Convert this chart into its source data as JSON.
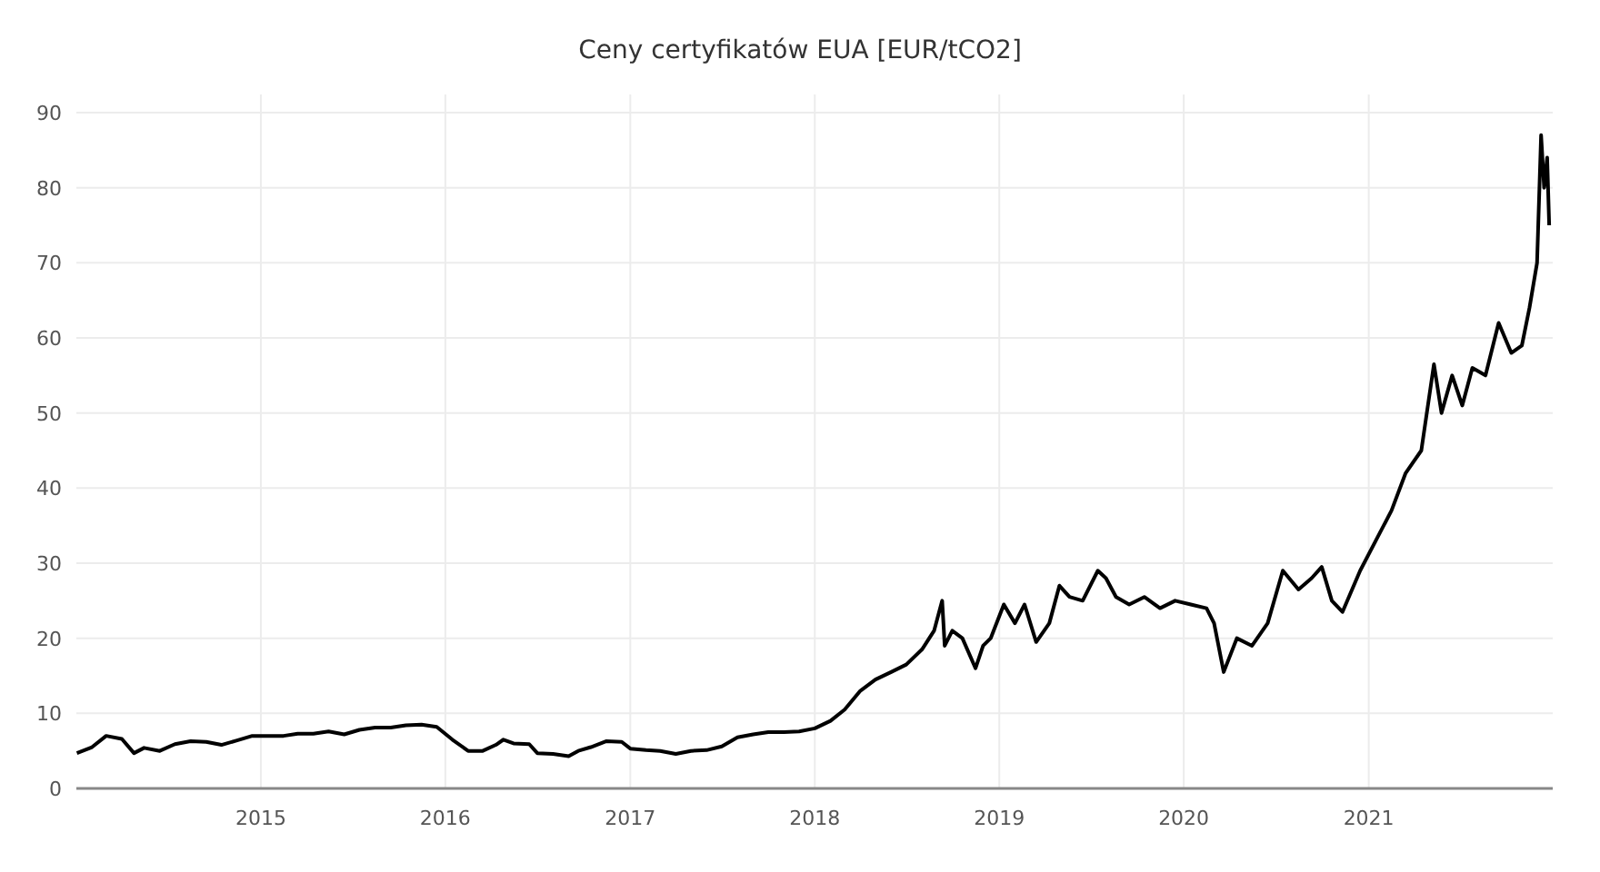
{
  "chart_data": {
    "type": "line",
    "title": "Ceny certyfikatów EUA [EUR/tCO2]",
    "xlim": [
      "2014-01-01",
      "2021-12-31"
    ],
    "xticks": [
      {
        "value": "2015-01-01",
        "label": "2015"
      },
      {
        "value": "2016-01-01",
        "label": "2016"
      },
      {
        "value": "2017-01-01",
        "label": "2017"
      },
      {
        "value": "2018-01-01",
        "label": "2018"
      },
      {
        "value": "2019-01-01",
        "label": "2019"
      },
      {
        "value": "2020-01-01",
        "label": "2020"
      },
      {
        "value": "2021-01-01",
        "label": "2021"
      }
    ],
    "ylim": [
      0,
      90
    ],
    "yticks": [
      0,
      10,
      20,
      30,
      40,
      50,
      60,
      70,
      80,
      90
    ],
    "grid": true,
    "series": [
      {
        "color": "#000000",
        "x": [
          "2014-01-02",
          "2014-02-01",
          "2014-03-01",
          "2014-04-01",
          "2014-04-25",
          "2014-05-15",
          "2014-06-15",
          "2014-07-15",
          "2014-08-15",
          "2014-09-15",
          "2014-10-15",
          "2014-11-15",
          "2014-12-15",
          "2015-01-15",
          "2015-02-15",
          "2015-03-15",
          "2015-04-15",
          "2015-05-15",
          "2015-06-15",
          "2015-07-15",
          "2015-08-15",
          "2015-09-15",
          "2015-10-15",
          "2015-11-15",
          "2015-12-15",
          "2016-01-15",
          "2016-02-15",
          "2016-03-15",
          "2016-04-10",
          "2016-04-25",
          "2016-05-15",
          "2016-06-15",
          "2016-07-01",
          "2016-08-01",
          "2016-09-01",
          "2016-09-20",
          "2016-10-15",
          "2016-11-15",
          "2016-12-15",
          "2017-01-01",
          "2017-02-01",
          "2017-03-01",
          "2017-04-01",
          "2017-05-01",
          "2017-06-01",
          "2017-07-01",
          "2017-08-01",
          "2017-09-01",
          "2017-10-01",
          "2017-11-01",
          "2017-12-01",
          "2018-01-01",
          "2018-02-01",
          "2018-03-01",
          "2018-04-01",
          "2018-05-01",
          "2018-06-01",
          "2018-07-01",
          "2018-08-01",
          "2018-08-25",
          "2018-09-10",
          "2018-09-15",
          "2018-09-30",
          "2018-10-20",
          "2018-11-15",
          "2018-11-30",
          "2018-12-15",
          "2019-01-10",
          "2019-02-01",
          "2019-02-20",
          "2019-03-15",
          "2019-04-10",
          "2019-04-30",
          "2019-05-20",
          "2019-06-15",
          "2019-07-15",
          "2019-07-31",
          "2019-08-20",
          "2019-09-15",
          "2019-10-15",
          "2019-11-15",
          "2019-12-15",
          "2020-01-15",
          "2020-02-15",
          "2020-03-01",
          "2020-03-20",
          "2020-04-15",
          "2020-05-15",
          "2020-06-15",
          "2020-07-15",
          "2020-08-15",
          "2020-09-10",
          "2020-09-30",
          "2020-10-20",
          "2020-11-10",
          "2020-12-15",
          "2021-01-15",
          "2021-02-15",
          "2021-03-15",
          "2021-04-15",
          "2021-05-10",
          "2021-05-25",
          "2021-06-15",
          "2021-07-05",
          "2021-07-25",
          "2021-08-20",
          "2021-09-15",
          "2021-10-10",
          "2021-10-31",
          "2021-11-15",
          "2021-11-30",
          "2021-12-08",
          "2021-12-14",
          "2021-12-20",
          "2021-12-24"
        ],
        "values": [
          4.7,
          5.5,
          7.0,
          6.6,
          4.7,
          5.4,
          5.0,
          5.9,
          6.3,
          6.2,
          5.8,
          6.4,
          7.0,
          7.0,
          7.0,
          7.3,
          7.3,
          7.6,
          7.2,
          7.8,
          8.1,
          8.1,
          8.4,
          8.5,
          8.2,
          6.5,
          5.0,
          5.0,
          5.8,
          6.5,
          6.0,
          5.9,
          4.7,
          4.6,
          4.3,
          5.0,
          5.5,
          6.3,
          6.2,
          5.3,
          5.1,
          5.0,
          4.6,
          5.0,
          5.1,
          5.6,
          6.8,
          7.2,
          7.5,
          7.5,
          7.6,
          8.0,
          9.0,
          10.5,
          13.0,
          14.5,
          15.5,
          16.5,
          18.5,
          21,
          25,
          19,
          21,
          20,
          16,
          19,
          20,
          24.5,
          22,
          24.5,
          19.5,
          22,
          27,
          25.5,
          25,
          29,
          28,
          25.5,
          24.5,
          25.5,
          24,
          25,
          24.5,
          24,
          22,
          15.5,
          20,
          19,
          22,
          29,
          26.5,
          28,
          29.5,
          25,
          23.5,
          29,
          33,
          37,
          42,
          45,
          56.5,
          50,
          55,
          51,
          56,
          55,
          62,
          58,
          59,
          64,
          70,
          87,
          80,
          84,
          75
        ]
      }
    ]
  }
}
